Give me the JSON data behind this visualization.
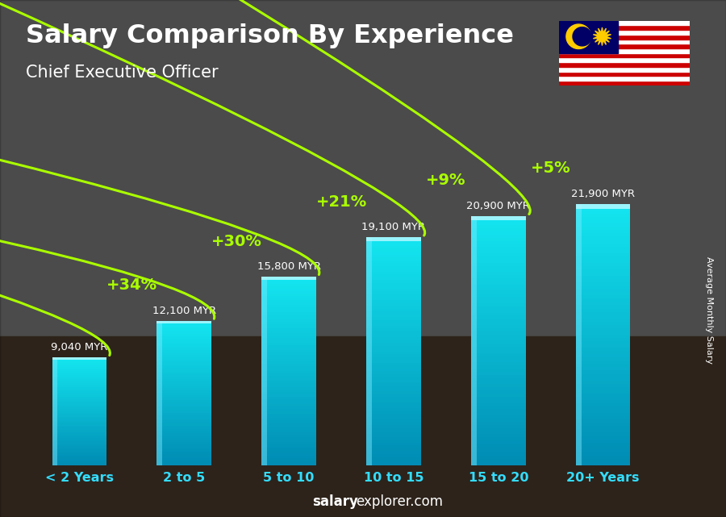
{
  "title": "Salary Comparison By Experience",
  "subtitle": "Chief Executive Officer",
  "categories": [
    "< 2 Years",
    "2 to 5",
    "5 to 10",
    "10 to 15",
    "15 to 20",
    "20+ Years"
  ],
  "values": [
    9040,
    12100,
    15800,
    19100,
    20900,
    21900
  ],
  "value_labels": [
    "9,040 MYR",
    "12,100 MYR",
    "15,800 MYR",
    "19,100 MYR",
    "20,900 MYR",
    "21,900 MYR"
  ],
  "pct_labels": [
    "+34%",
    "+30%",
    "+21%",
    "+9%",
    "+5%"
  ],
  "bar_color_bottom": "#0077aa",
  "bar_color_top": "#33ddff",
  "bar_highlight": "#88eeff",
  "bg_color": "#555555",
  "bg_overlay": "#00000066",
  "title_color": "#ffffff",
  "subtitle_color": "#ffffff",
  "label_color": "#ffffff",
  "pct_color": "#aaff00",
  "arrow_color": "#aaff00",
  "xlabel_color": "#33ddff",
  "footer_salary_color": "#ffffff",
  "footer_explorer_color": "#ffffff",
  "side_label": "Average Monthly Salary",
  "ylim_max": 26000,
  "bar_width": 0.52,
  "flag_stripes": [
    "#CC0001",
    "#FFFFFF",
    "#CC0001",
    "#FFFFFF",
    "#CC0001",
    "#FFFFFF",
    "#CC0001",
    "#FFFFFF",
    "#CC0001",
    "#FFFFFF",
    "#CC0001",
    "#FFFFFF",
    "#CC0001",
    "#FFFFFF"
  ],
  "flag_blue": "#010066",
  "flag_yellow": "#FFCC00"
}
